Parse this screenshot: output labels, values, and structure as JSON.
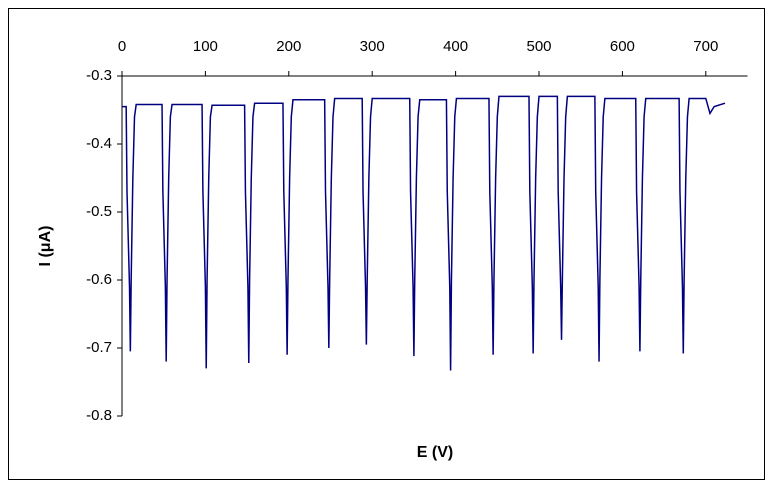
{
  "chart_data": {
    "type": "line",
    "x_label": "E (V)",
    "y_label": "I (μA)",
    "x": [
      0,
      5,
      6,
      9,
      10,
      11,
      13,
      15,
      17,
      48,
      49,
      52,
      53,
      54,
      56,
      58,
      60,
      96,
      97,
      100,
      101,
      102,
      104,
      106,
      108,
      147,
      148,
      151,
      152,
      153,
      155,
      157,
      159,
      193,
      194,
      197,
      198,
      199,
      201,
      203,
      205,
      243,
      244,
      247,
      248,
      249,
      251,
      253,
      255,
      288,
      289,
      292,
      293,
      294,
      296,
      298,
      300,
      345,
      346,
      349,
      350,
      351,
      353,
      355,
      357,
      389,
      390,
      393,
      394,
      395,
      397,
      399,
      401,
      440,
      441,
      444,
      445,
      446,
      448,
      450,
      452,
      488,
      489,
      492,
      493,
      494,
      496,
      498,
      500,
      522,
      523,
      526,
      527,
      528,
      530,
      532,
      534,
      567,
      568,
      571,
      572,
      573,
      575,
      577,
      579,
      616,
      617,
      620,
      621,
      622,
      624,
      626,
      628,
      668,
      669,
      672,
      673,
      674,
      676,
      678,
      680,
      700,
      705,
      710,
      723
    ],
    "series": [
      {
        "color": "#000080",
        "values": [
          -0.345,
          -0.345,
          -0.47,
          -0.61,
          -0.705,
          -0.6,
          -0.45,
          -0.36,
          -0.342,
          -0.342,
          -0.47,
          -0.61,
          -0.72,
          -0.6,
          -0.45,
          -0.36,
          -0.342,
          -0.342,
          -0.47,
          -0.61,
          -0.73,
          -0.6,
          -0.45,
          -0.36,
          -0.343,
          -0.343,
          -0.47,
          -0.61,
          -0.722,
          -0.6,
          -0.45,
          -0.36,
          -0.34,
          -0.34,
          -0.47,
          -0.61,
          -0.71,
          -0.6,
          -0.45,
          -0.36,
          -0.335,
          -0.335,
          -0.47,
          -0.61,
          -0.7,
          -0.6,
          -0.45,
          -0.36,
          -0.333,
          -0.333,
          -0.47,
          -0.61,
          -0.695,
          -0.6,
          -0.45,
          -0.36,
          -0.333,
          -0.333,
          -0.47,
          -0.61,
          -0.712,
          -0.6,
          -0.45,
          -0.36,
          -0.335,
          -0.335,
          -0.47,
          -0.61,
          -0.733,
          -0.6,
          -0.45,
          -0.36,
          -0.333,
          -0.333,
          -0.47,
          -0.61,
          -0.71,
          -0.6,
          -0.45,
          -0.36,
          -0.33,
          -0.33,
          -0.47,
          -0.61,
          -0.708,
          -0.6,
          -0.45,
          -0.36,
          -0.33,
          -0.33,
          -0.47,
          -0.61,
          -0.688,
          -0.6,
          -0.45,
          -0.36,
          -0.33,
          -0.33,
          -0.47,
          -0.61,
          -0.72,
          -0.6,
          -0.45,
          -0.36,
          -0.333,
          -0.333,
          -0.47,
          -0.61,
          -0.705,
          -0.6,
          -0.45,
          -0.36,
          -0.333,
          -0.333,
          -0.47,
          -0.61,
          -0.708,
          -0.6,
          -0.45,
          -0.36,
          -0.333,
          -0.333,
          -0.355,
          -0.345,
          -0.34
        ]
      }
    ],
    "xlim": [
      0,
      750
    ],
    "xticks": [
      0,
      100,
      200,
      300,
      400,
      500,
      600,
      700
    ],
    "ylim": [
      -0.8,
      -0.3
    ],
    "yticks": [
      -0.3,
      -0.4,
      -0.5,
      -0.6,
      -0.7,
      -0.8
    ]
  }
}
